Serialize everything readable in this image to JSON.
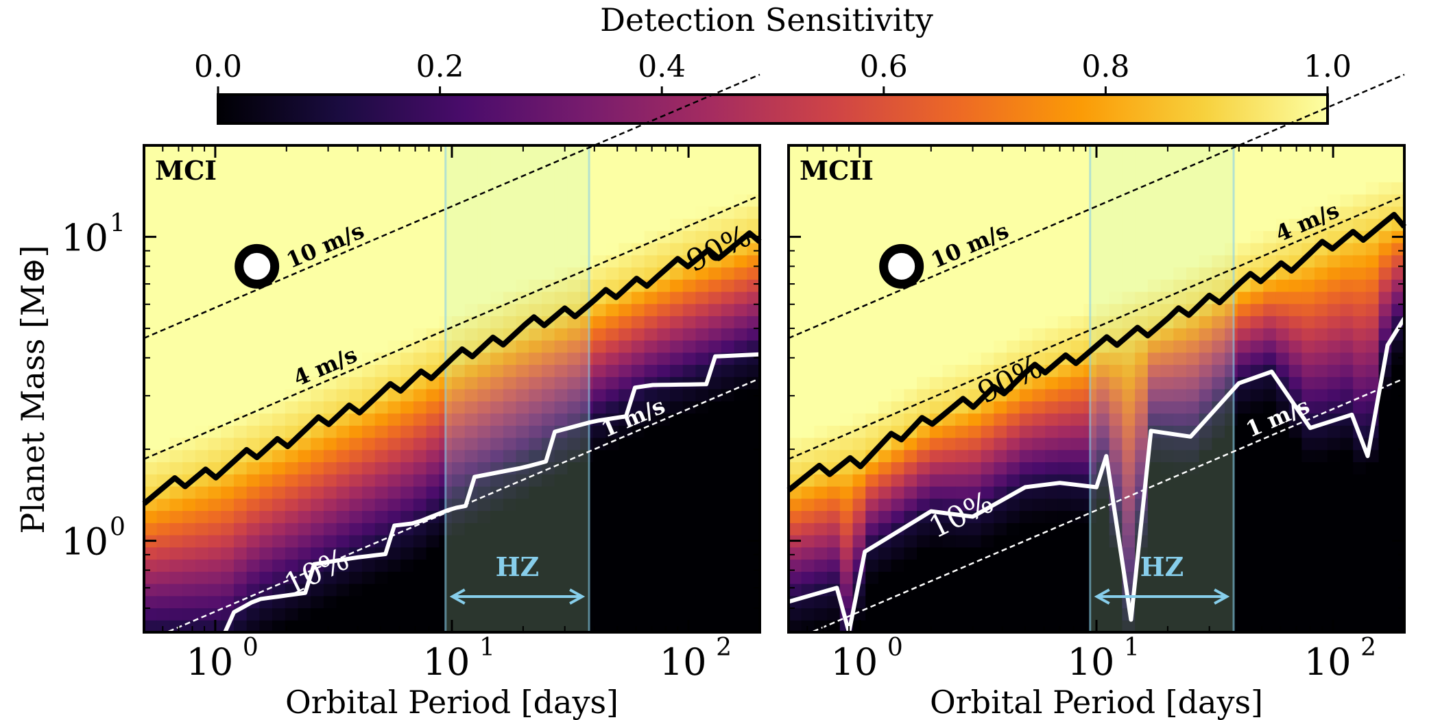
{
  "colorbar": {
    "label": "Detection Sensitivity",
    "ticks": [
      "0.0",
      "0.2",
      "0.4",
      "0.6",
      "0.8",
      "1.0"
    ],
    "tick_values": [
      0.0,
      0.2,
      0.4,
      0.6,
      0.8,
      1.0
    ],
    "range": [
      0.0,
      1.0
    ],
    "colormap": "inferno",
    "stops": [
      "#000004",
      "#1b0c41",
      "#4a0c6b",
      "#781c6d",
      "#a52c60",
      "#cf4446",
      "#ed6925",
      "#fb9b06",
      "#f7d13d",
      "#fcffa4"
    ]
  },
  "shared": {
    "ylabel": "Planet Mass [M⊕]",
    "xlabel": "Orbital Period [days]",
    "xtick_labels": [
      "10",
      "10",
      "10"
    ],
    "xtick_exponents": [
      "0",
      "1",
      "2"
    ],
    "ytick_labels": [
      "10",
      "10"
    ],
    "ytick_exponents": [
      "0",
      "1"
    ],
    "hz_label": "HZ",
    "hz_color": "#87ceeb",
    "hz_fill": "#c6f5c3",
    "rv_labels": [
      "10 m/s",
      "4 m/s",
      "1 m/s"
    ],
    "contour_90_label": "90%",
    "contour_10_label": "10%"
  },
  "chart_data": [
    {
      "type": "heatmap",
      "title": "MCI",
      "xlabel": "Orbital Period [days]",
      "ylabel": "Planet Mass [M⊕]",
      "x_scale": "log",
      "y_scale": "log",
      "xlim": [
        0.5,
        200
      ],
      "ylim": [
        0.5,
        20
      ],
      "hz_range_days": [
        9.4,
        38
      ],
      "rv_semi_amplitude_lines_ms": [
        10,
        4,
        1
      ],
      "contour_90_mass_at_period": [
        [
          0.5,
          1.4
        ],
        [
          1,
          1.7
        ],
        [
          2,
          2.15
        ],
        [
          3,
          2.5
        ],
        [
          5,
          3.0
        ],
        [
          10,
          3.9
        ],
        [
          20,
          5.0
        ],
        [
          40,
          6.1
        ],
        [
          70,
          7.4
        ],
        [
          100,
          8.3
        ],
        [
          200,
          10.0
        ]
      ],
      "contour_10_mass_at_period": [
        [
          1.1,
          0.5
        ],
        [
          1.5,
          0.62
        ],
        [
          2.5,
          0.75
        ],
        [
          4,
          0.9
        ],
        [
          7,
          1.1
        ],
        [
          10,
          1.35
        ],
        [
          20,
          1.8
        ],
        [
          40,
          2.5
        ],
        [
          70,
          3.1
        ],
        [
          120,
          3.6
        ],
        [
          200,
          4.2
        ]
      ],
      "companion_marker": {
        "period": 1.5,
        "mass": 8.0
      }
    },
    {
      "type": "heatmap",
      "title": "MCII",
      "xlabel": "Orbital Period [days]",
      "ylabel": "Planet Mass [M⊕]",
      "x_scale": "log",
      "y_scale": "log",
      "xlim": [
        0.5,
        200
      ],
      "ylim": [
        0.5,
        20
      ],
      "hz_range_days": [
        9.4,
        38
      ],
      "rv_semi_amplitude_lines_ms": [
        10,
        4,
        1
      ],
      "contour_90_mass_at_period": [
        [
          0.5,
          1.55
        ],
        [
          1,
          1.85
        ],
        [
          2,
          2.55
        ],
        [
          3,
          2.85
        ],
        [
          5,
          3.5
        ],
        [
          10,
          4.3
        ],
        [
          20,
          5.3
        ],
        [
          40,
          6.9
        ],
        [
          70,
          8.3
        ],
        [
          100,
          9.5
        ],
        [
          180,
          11.2
        ]
      ],
      "contour_10_mass_at_period": [
        [
          0.5,
          0.63
        ],
        [
          0.8,
          0.7
        ],
        [
          0.9,
          0.45
        ],
        [
          1.05,
          0.92
        ],
        [
          2,
          1.25
        ],
        [
          3,
          1.2
        ],
        [
          5,
          1.5
        ],
        [
          7,
          1.55
        ],
        [
          10,
          1.5
        ],
        [
          11,
          1.9
        ],
        [
          14,
          0.55
        ],
        [
          17,
          2.3
        ],
        [
          25,
          2.2
        ],
        [
          40,
          3.3
        ],
        [
          55,
          3.6
        ],
        [
          80,
          2.35
        ],
        [
          120,
          2.6
        ],
        [
          140,
          1.9
        ],
        [
          170,
          4.4
        ],
        [
          200,
          5.4
        ]
      ],
      "companion_marker": {
        "period": 1.5,
        "mass": 8.0
      }
    }
  ]
}
